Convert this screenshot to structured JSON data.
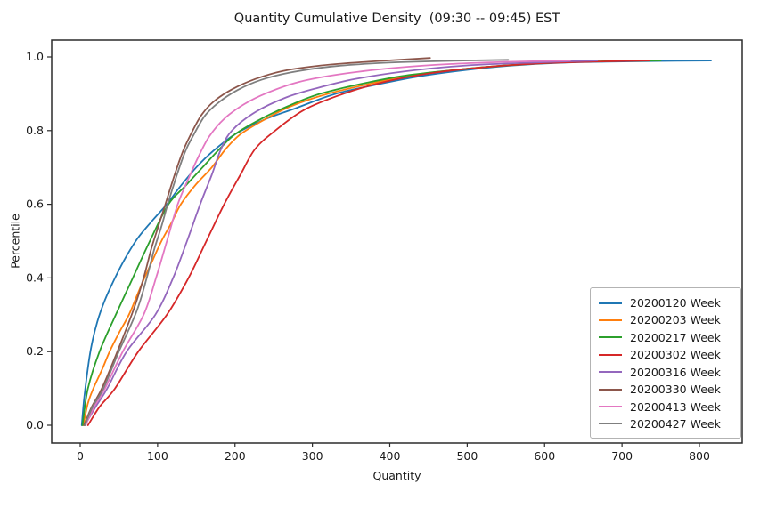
{
  "title": "Quantity Cumulative Density  (09:30 -- 09:45) EST",
  "chart_data": {
    "type": "line",
    "subtype": "cumulative-density",
    "title": "Quantity Cumulative Density  (09:30 -- 09:45) EST",
    "xlabel": "Quantity",
    "ylabel": "Percentile",
    "xticks": [
      0,
      100,
      200,
      300,
      400,
      500,
      600,
      700,
      800
    ],
    "yticks": [
      "0.0",
      "0.2",
      "0.4",
      "0.6",
      "0.8",
      "1.0"
    ],
    "xlim": [
      -38,
      855
    ],
    "ylim": [
      -0.05,
      1.05
    ],
    "grid": false,
    "legend_position": "lower right",
    "text_color": "#1a1a1a",
    "spine_color": "#2b2b2b",
    "series": [
      {
        "name": "20200120 Week",
        "color": "#1f77b4",
        "points": [
          [
            2,
            0
          ],
          [
            5,
            0.07
          ],
          [
            9,
            0.14
          ],
          [
            14,
            0.21
          ],
          [
            22,
            0.28
          ],
          [
            32,
            0.34
          ],
          [
            45,
            0.4
          ],
          [
            60,
            0.46
          ],
          [
            75,
            0.51
          ],
          [
            95,
            0.56
          ],
          [
            112,
            0.6
          ],
          [
            128,
            0.645
          ],
          [
            150,
            0.7
          ],
          [
            172,
            0.745
          ],
          [
            200,
            0.79
          ],
          [
            238,
            0.83
          ],
          [
            280,
            0.862
          ],
          [
            330,
            0.9
          ],
          [
            390,
            0.928
          ],
          [
            440,
            0.948
          ],
          [
            500,
            0.965
          ],
          [
            560,
            0.977
          ],
          [
            620,
            0.984
          ],
          [
            680,
            0.987
          ],
          [
            745,
            0.989
          ],
          [
            815,
            0.99
          ]
        ]
      },
      {
        "name": "20200203 Week",
        "color": "#ff7f0e",
        "points": [
          [
            4,
            0
          ],
          [
            10,
            0.06
          ],
          [
            17,
            0.1
          ],
          [
            28,
            0.15
          ],
          [
            38,
            0.2
          ],
          [
            50,
            0.25
          ],
          [
            63,
            0.3
          ],
          [
            73,
            0.35
          ],
          [
            83,
            0.4
          ],
          [
            94,
            0.45
          ],
          [
            105,
            0.5
          ],
          [
            118,
            0.55
          ],
          [
            130,
            0.6
          ],
          [
            148,
            0.65
          ],
          [
            170,
            0.7
          ],
          [
            188,
            0.75
          ],
          [
            207,
            0.79
          ],
          [
            238,
            0.83
          ],
          [
            272,
            0.866
          ],
          [
            320,
            0.9
          ],
          [
            380,
            0.93
          ],
          [
            430,
            0.951
          ],
          [
            500,
            0.968
          ],
          [
            570,
            0.98
          ],
          [
            640,
            0.988
          ]
        ]
      },
      {
        "name": "20200217 Week",
        "color": "#2ca02c",
        "points": [
          [
            3,
            0
          ],
          [
            10,
            0.1
          ],
          [
            25,
            0.2
          ],
          [
            46,
            0.3
          ],
          [
            68,
            0.4
          ],
          [
            90,
            0.5
          ],
          [
            114,
            0.6
          ],
          [
            136,
            0.65
          ],
          [
            158,
            0.7
          ],
          [
            180,
            0.75
          ],
          [
            200,
            0.79
          ],
          [
            232,
            0.83
          ],
          [
            268,
            0.866
          ],
          [
            310,
            0.9
          ],
          [
            370,
            0.93
          ],
          [
            425,
            0.951
          ],
          [
            500,
            0.968
          ],
          [
            565,
            0.979
          ],
          [
            650,
            0.987
          ],
          [
            750,
            0.99
          ]
        ]
      },
      {
        "name": "20200302 Week",
        "color": "#d62728",
        "points": [
          [
            10,
            0
          ],
          [
            25,
            0.05
          ],
          [
            45,
            0.1
          ],
          [
            75,
            0.2
          ],
          [
            112,
            0.3
          ],
          [
            140,
            0.4
          ],
          [
            163,
            0.5
          ],
          [
            186,
            0.6
          ],
          [
            207,
            0.68
          ],
          [
            226,
            0.75
          ],
          [
            252,
            0.8
          ],
          [
            290,
            0.857
          ],
          [
            340,
            0.9
          ],
          [
            392,
            0.932
          ],
          [
            450,
            0.955
          ],
          [
            520,
            0.972
          ],
          [
            600,
            0.983
          ],
          [
            680,
            0.988
          ],
          [
            735,
            0.99
          ]
        ]
      },
      {
        "name": "20200316 Week",
        "color": "#9467bd",
        "points": [
          [
            6,
            0
          ],
          [
            20,
            0.05
          ],
          [
            35,
            0.1
          ],
          [
            60,
            0.2
          ],
          [
            97,
            0.3
          ],
          [
            120,
            0.4
          ],
          [
            138,
            0.5
          ],
          [
            155,
            0.6
          ],
          [
            170,
            0.68
          ],
          [
            182,
            0.75
          ],
          [
            196,
            0.8
          ],
          [
            226,
            0.85
          ],
          [
            266,
            0.89
          ],
          [
            305,
            0.915
          ],
          [
            355,
            0.94
          ],
          [
            420,
            0.961
          ],
          [
            500,
            0.977
          ],
          [
            590,
            0.985
          ],
          [
            668,
            0.99
          ]
        ]
      },
      {
        "name": "20200330 Week",
        "color": "#8c564b",
        "points": [
          [
            5,
            0
          ],
          [
            15,
            0.05
          ],
          [
            28,
            0.1
          ],
          [
            48,
            0.2
          ],
          [
            70,
            0.32
          ],
          [
            82,
            0.4
          ],
          [
            92,
            0.48
          ],
          [
            101,
            0.54
          ],
          [
            110,
            0.6
          ],
          [
            122,
            0.68
          ],
          [
            133,
            0.745
          ],
          [
            143,
            0.79
          ],
          [
            156,
            0.84
          ],
          [
            172,
            0.878
          ],
          [
            196,
            0.912
          ],
          [
            226,
            0.94
          ],
          [
            262,
            0.962
          ],
          [
            312,
            0.977
          ],
          [
            372,
            0.987
          ],
          [
            452,
            0.997
          ]
        ]
      },
      {
        "name": "20200413 Week",
        "color": "#e377c2",
        "points": [
          [
            7,
            0
          ],
          [
            18,
            0.05
          ],
          [
            32,
            0.1
          ],
          [
            55,
            0.2
          ],
          [
            82,
            0.3
          ],
          [
            98,
            0.4
          ],
          [
            112,
            0.5
          ],
          [
            126,
            0.6
          ],
          [
            140,
            0.67
          ],
          [
            153,
            0.73
          ],
          [
            167,
            0.785
          ],
          [
            186,
            0.832
          ],
          [
            212,
            0.872
          ],
          [
            242,
            0.903
          ],
          [
            282,
            0.932
          ],
          [
            335,
            0.953
          ],
          [
            405,
            0.97
          ],
          [
            480,
            0.981
          ],
          [
            560,
            0.987
          ],
          [
            633,
            0.99
          ]
        ]
      },
      {
        "name": "20200427 Week",
        "color": "#7f7f7f",
        "points": [
          [
            6,
            0
          ],
          [
            16,
            0.05
          ],
          [
            30,
            0.1
          ],
          [
            50,
            0.2
          ],
          [
            73,
            0.31
          ],
          [
            86,
            0.4
          ],
          [
            96,
            0.48
          ],
          [
            105,
            0.54
          ],
          [
            113,
            0.6
          ],
          [
            125,
            0.68
          ],
          [
            136,
            0.745
          ],
          [
            147,
            0.79
          ],
          [
            161,
            0.84
          ],
          [
            178,
            0.875
          ],
          [
            203,
            0.91
          ],
          [
            234,
            0.938
          ],
          [
            272,
            0.958
          ],
          [
            324,
            0.974
          ],
          [
            392,
            0.984
          ],
          [
            470,
            0.989
          ],
          [
            553,
            0.992
          ]
        ]
      }
    ]
  }
}
